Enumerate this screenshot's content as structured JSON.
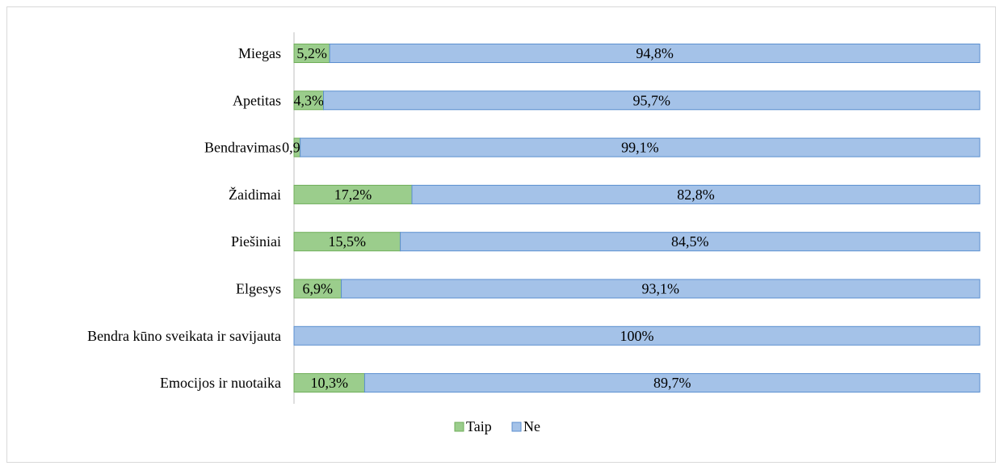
{
  "chart_data": {
    "type": "bar",
    "orientation": "horizontal",
    "stacked": "100%",
    "categories": [
      "Miegas",
      "Apetitas",
      "Bendravimas",
      "Žaidimai",
      "Piešiniai",
      "Elgesys",
      "Bendra kūno sveikata ir savijauta",
      "Emocijos ir nuotaika"
    ],
    "series": [
      {
        "name": "Taip",
        "color": "#9bcd8c",
        "edge": "#6fae59",
        "values": [
          5.2,
          4.3,
          0.9,
          17.2,
          15.5,
          6.9,
          0,
          10.3
        ],
        "labels": [
          "5,2%",
          "4,3%",
          "0,9%",
          "17,2%",
          "15,5%",
          "6,9%",
          "",
          "10,3%"
        ]
      },
      {
        "name": "Ne",
        "color": "#a4c2e8",
        "edge": "#5b8fcf",
        "values": [
          94.8,
          95.7,
          99.1,
          82.8,
          84.5,
          93.1,
          100,
          89.7
        ],
        "labels": [
          "94,8%",
          "95,7%",
          "99,1%",
          "82,8%",
          "84,5%",
          "93,1%",
          "100%",
          "89,7%"
        ]
      }
    ],
    "xlim": [
      0,
      100
    ],
    "legend": "bottom",
    "grid": false
  }
}
